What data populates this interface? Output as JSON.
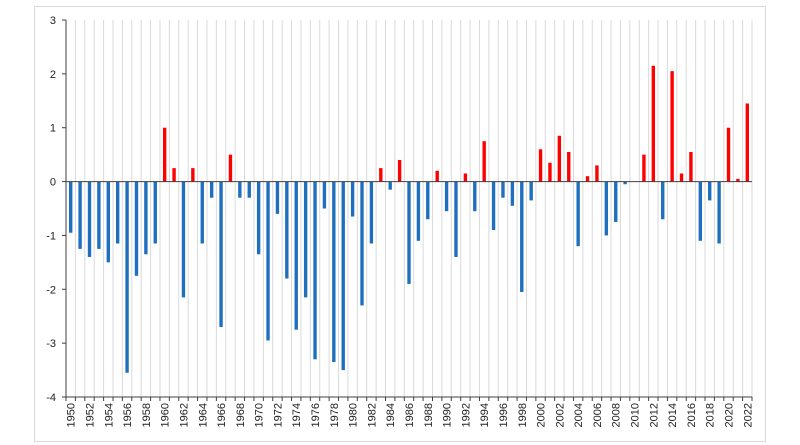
{
  "chart_data": {
    "type": "bar",
    "title": "",
    "xlabel": "",
    "ylabel": "",
    "ylim": [
      -4,
      3
    ],
    "yticks": [
      -4,
      -3,
      -2,
      -1,
      0,
      1,
      2,
      3
    ],
    "grid": "vertical",
    "legend": "none",
    "colors": {
      "positive": "#ff0000",
      "negative": "#1f6fbf",
      "grid": "#d9d9d9",
      "axis": "#404040"
    },
    "categories": [
      1950,
      1951,
      1952,
      1953,
      1954,
      1955,
      1956,
      1957,
      1958,
      1959,
      1960,
      1961,
      1962,
      1963,
      1964,
      1965,
      1966,
      1967,
      1968,
      1969,
      1970,
      1971,
      1972,
      1973,
      1974,
      1975,
      1976,
      1977,
      1978,
      1979,
      1980,
      1981,
      1982,
      1983,
      1984,
      1985,
      1986,
      1987,
      1988,
      1989,
      1990,
      1991,
      1992,
      1993,
      1994,
      1995,
      1996,
      1997,
      1998,
      1999,
      2000,
      2001,
      2002,
      2003,
      2004,
      2005,
      2006,
      2007,
      2008,
      2009,
      2010,
      2011,
      2012,
      2013,
      2014,
      2015,
      2016,
      2017,
      2018,
      2019,
      2020,
      2021,
      2022
    ],
    "xtick_labels": [
      "1950",
      "1952",
      "1954",
      "1956",
      "1958",
      "1960",
      "1962",
      "1964",
      "1966",
      "1968",
      "1970",
      "1972",
      "1974",
      "1976",
      "1978",
      "1980",
      "1982",
      "1984",
      "1986",
      "1988",
      "1990",
      "1992",
      "1994",
      "1996",
      "1998",
      "2000",
      "2002",
      "2004",
      "2006",
      "2008",
      "2010",
      "2012",
      "2014",
      "2016",
      "2018",
      "2020",
      "2022"
    ],
    "values": [
      -0.95,
      -1.25,
      -1.4,
      -1.25,
      -1.5,
      -1.15,
      -3.55,
      -1.75,
      -1.35,
      -1.15,
      1.0,
      0.25,
      -2.15,
      0.25,
      -1.15,
      -0.3,
      -2.7,
      0.5,
      -0.3,
      -0.3,
      -1.35,
      -2.95,
      -0.6,
      -1.8,
      -2.75,
      -2.15,
      -3.3,
      -0.5,
      -3.35,
      -3.5,
      -0.65,
      -2.3,
      -1.15,
      0.25,
      -0.15,
      0.4,
      -1.9,
      -1.1,
      -0.7,
      0.2,
      -0.55,
      -1.4,
      0.15,
      -0.55,
      0.75,
      -0.9,
      -0.3,
      -0.45,
      -2.05,
      -0.35,
      0.6,
      0.35,
      0.85,
      0.55,
      -1.2,
      0.1,
      0.3,
      -1.0,
      -0.75,
      -0.05,
      0.0,
      0.5,
      2.15,
      -0.7,
      2.05,
      0.15,
      0.55,
      -1.1,
      -0.35,
      -1.15,
      1.0,
      0.05,
      1.45
    ]
  }
}
